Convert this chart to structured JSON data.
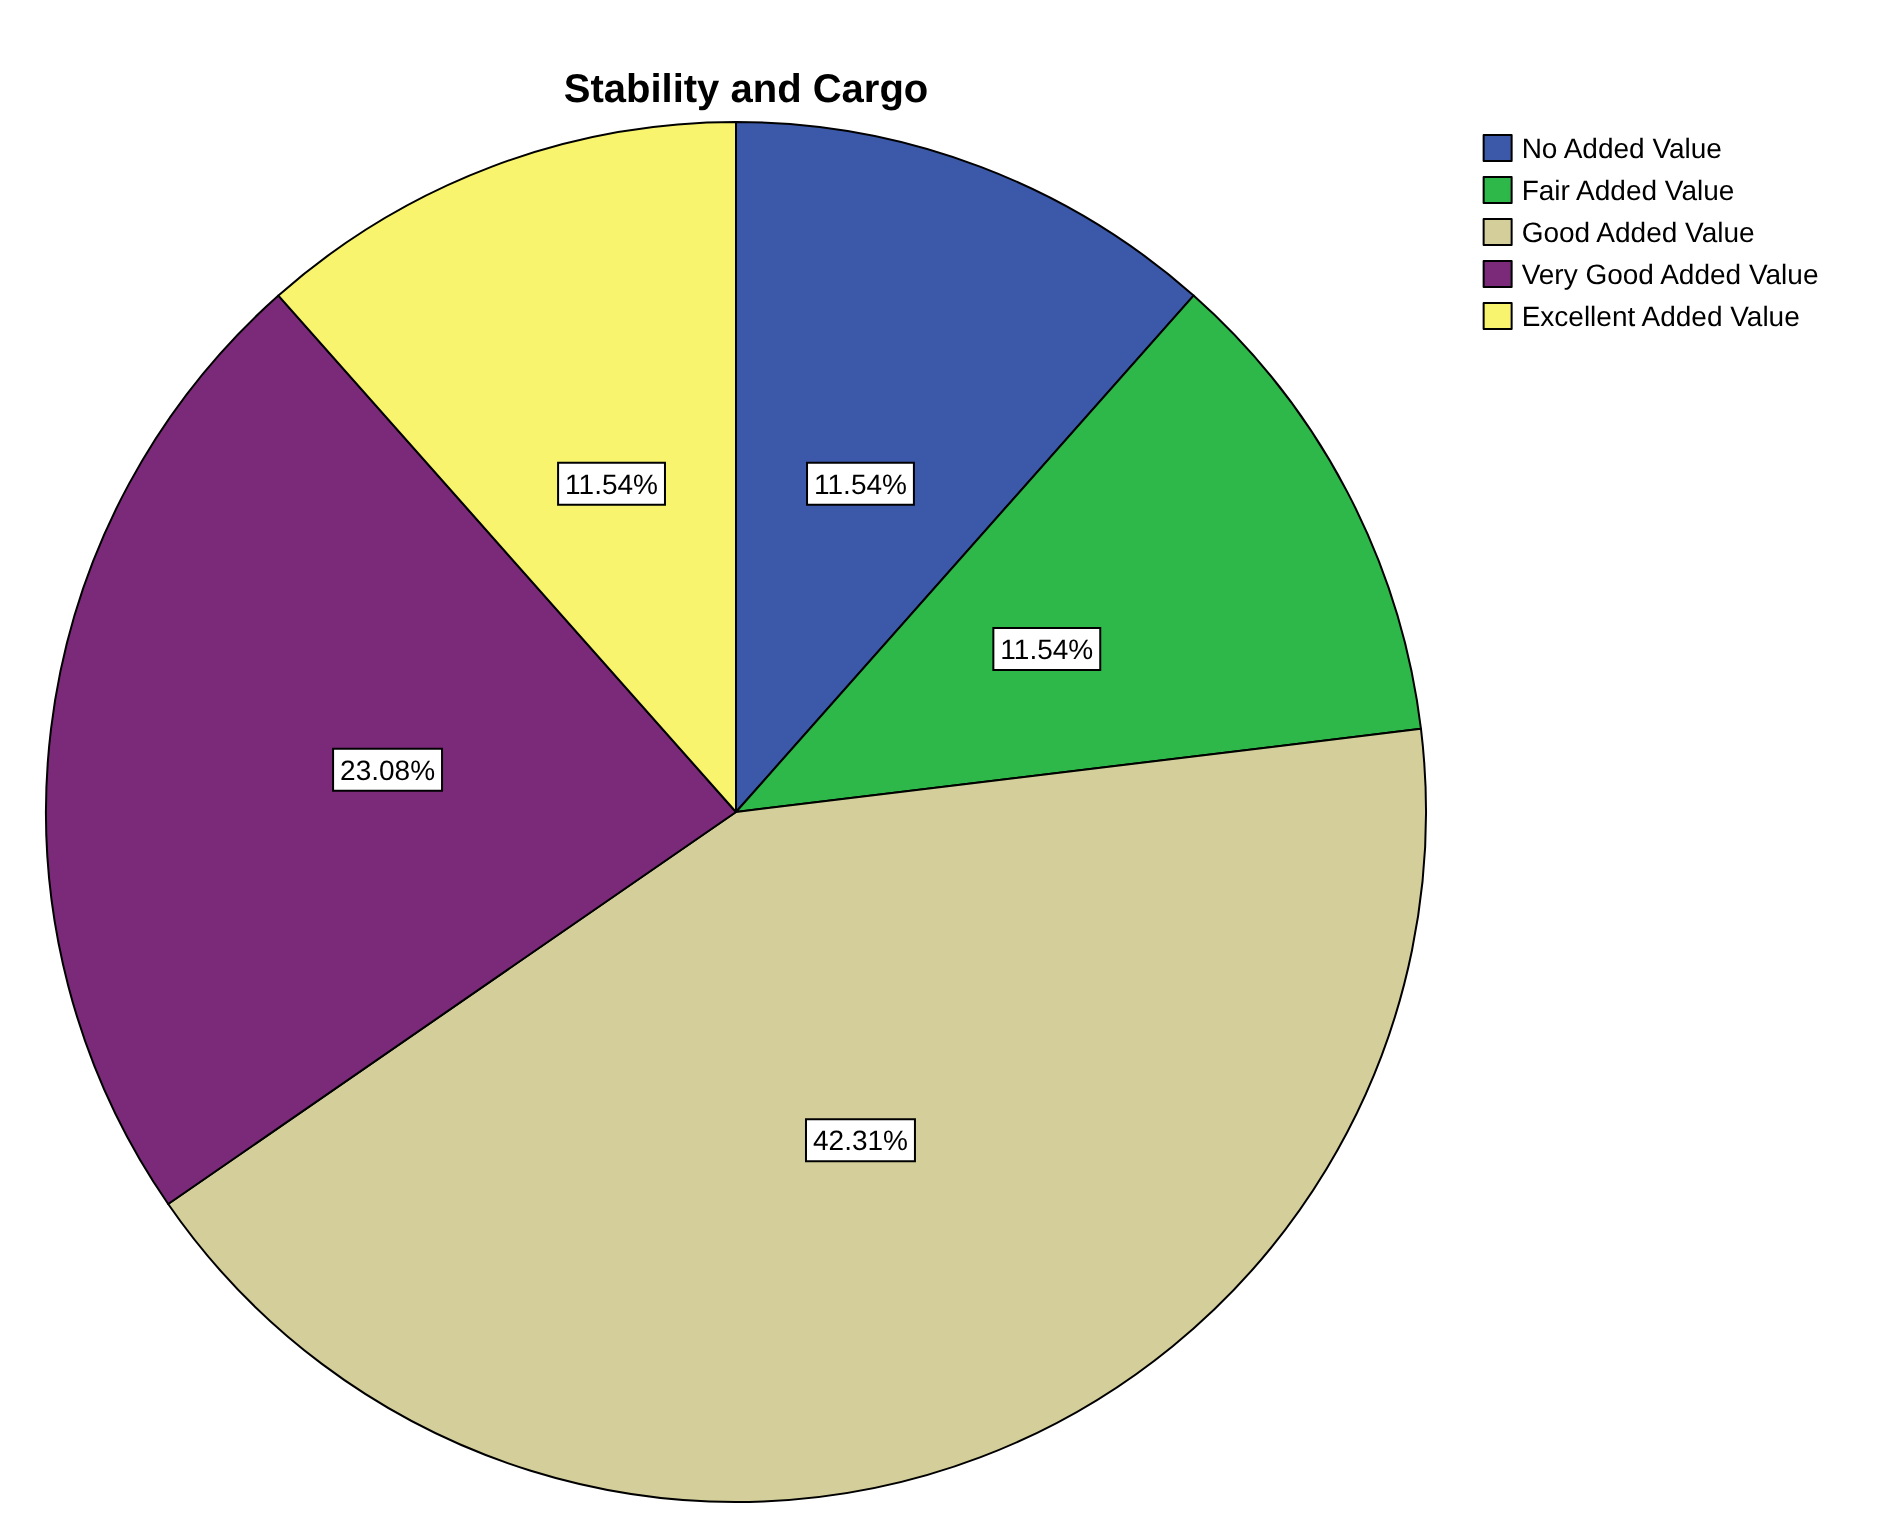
{
  "chart_data": {
    "type": "pie",
    "title": "Stability and Cargo",
    "categories": [
      "No Added Value",
      "Fair Added Value",
      "Good Added Value",
      "Very Good Added Value",
      "Excellent Added Value"
    ],
    "values": [
      11.54,
      11.54,
      42.31,
      23.08,
      11.54
    ],
    "value_labels": [
      "11.54%",
      "11.54%",
      "42.31%",
      "23.08%",
      "11.54%"
    ],
    "colors": [
      "#3c58a8",
      "#2eb84a",
      "#d4cf9a",
      "#7b2a7a",
      "#f8f46e"
    ],
    "legend": "top right"
  }
}
